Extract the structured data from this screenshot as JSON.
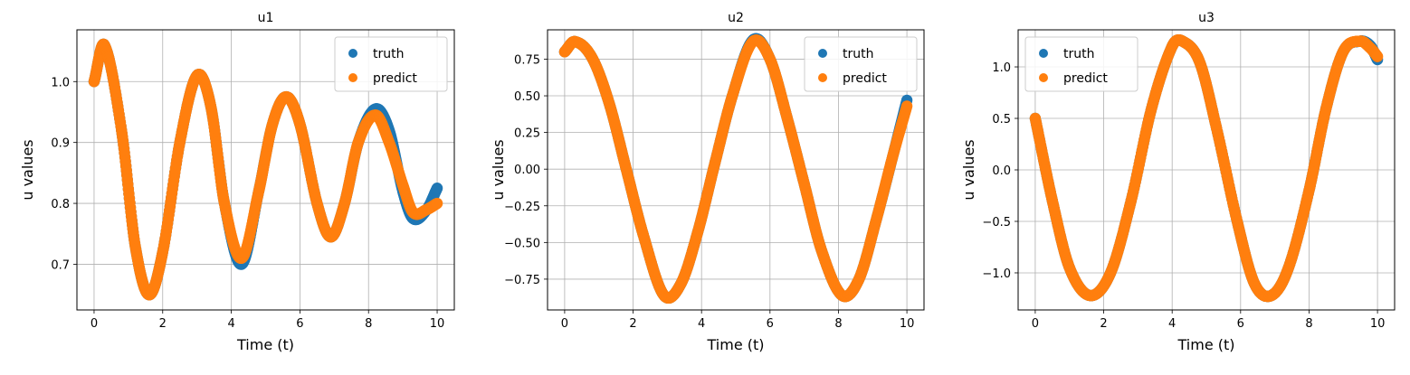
{
  "chart_data": [
    {
      "type": "scatter",
      "title": "u1",
      "xlabel": "Time (t)",
      "ylabel": "u values",
      "xlim": [
        -0.5,
        10.5
      ],
      "ylim": [
        0.625,
        1.085
      ],
      "xticks": [
        0,
        2,
        4,
        6,
        8,
        10
      ],
      "yticks": [
        0.7,
        0.8,
        0.9,
        1.0
      ],
      "ytick_labels": [
        "0.7",
        "0.8",
        "0.9",
        "1.0"
      ],
      "grid": true,
      "legend": "upper right",
      "series": [
        {
          "name": "truth",
          "color": "#1f77b4",
          "x": [
            0,
            0.3,
            0.8,
            1.2,
            1.6,
            2.0,
            2.5,
            3.0,
            3.4,
            3.8,
            4.3,
            4.8,
            5.2,
            5.6,
            6.0,
            6.5,
            6.9,
            7.3,
            7.7,
            8.2,
            8.6,
            9.0,
            9.3,
            9.7,
            10.0
          ],
          "y": [
            1.0,
            1.06,
            0.92,
            0.73,
            0.65,
            0.72,
            0.9,
            1.01,
            0.96,
            0.8,
            0.7,
            0.82,
            0.93,
            0.975,
            0.93,
            0.8,
            0.745,
            0.8,
            0.9,
            0.955,
            0.92,
            0.82,
            0.775,
            0.79,
            0.825
          ]
        },
        {
          "name": "predict",
          "color": "#ff7f0e",
          "x": [
            0,
            0.3,
            0.8,
            1.2,
            1.6,
            2.0,
            2.5,
            3.0,
            3.4,
            3.8,
            4.3,
            4.8,
            5.2,
            5.6,
            6.0,
            6.5,
            6.9,
            7.3,
            7.7,
            8.2,
            8.6,
            9.0,
            9.3,
            9.7,
            10.0
          ],
          "y": [
            1.0,
            1.06,
            0.92,
            0.73,
            0.65,
            0.72,
            0.9,
            1.01,
            0.96,
            0.8,
            0.71,
            0.82,
            0.93,
            0.975,
            0.93,
            0.8,
            0.745,
            0.8,
            0.9,
            0.945,
            0.9,
            0.83,
            0.785,
            0.79,
            0.8
          ]
        }
      ]
    },
    {
      "type": "scatter",
      "title": "u2",
      "xlabel": "Time (t)",
      "ylabel": "u values",
      "xlim": [
        -0.5,
        10.5
      ],
      "ylim": [
        -0.96,
        0.95
      ],
      "xticks": [
        0,
        2,
        4,
        6,
        8,
        10
      ],
      "yticks": [
        -0.75,
        -0.5,
        -0.25,
        0.0,
        0.25,
        0.5,
        0.75
      ],
      "ytick_labels": [
        "−0.75",
        "−0.50",
        "−0.25",
        "0.00",
        "0.25",
        "0.50",
        "0.75"
      ],
      "grid": true,
      "legend": "upper right",
      "series": [
        {
          "name": "truth",
          "color": "#1f77b4",
          "x": [
            0,
            0.3,
            0.8,
            1.3,
            1.8,
            2.3,
            2.9,
            3.4,
            3.9,
            4.4,
            4.9,
            5.5,
            6.0,
            6.5,
            7.0,
            7.5,
            8.1,
            8.6,
            9.1,
            9.6,
            10.0
          ],
          "y": [
            0.8,
            0.87,
            0.76,
            0.45,
            0.0,
            -0.45,
            -0.86,
            -0.78,
            -0.42,
            0.05,
            0.5,
            0.88,
            0.75,
            0.35,
            -0.1,
            -0.55,
            -0.86,
            -0.75,
            -0.35,
            0.1,
            0.47
          ]
        },
        {
          "name": "predict",
          "color": "#ff7f0e",
          "x": [
            0,
            0.3,
            0.8,
            1.3,
            1.8,
            2.3,
            2.9,
            3.4,
            3.9,
            4.4,
            4.9,
            5.5,
            6.0,
            6.5,
            7.0,
            7.5,
            8.1,
            8.6,
            9.1,
            9.6,
            10.0
          ],
          "y": [
            0.8,
            0.87,
            0.76,
            0.45,
            0.0,
            -0.45,
            -0.86,
            -0.78,
            -0.42,
            0.05,
            0.5,
            0.87,
            0.75,
            0.35,
            -0.1,
            -0.55,
            -0.86,
            -0.75,
            -0.35,
            0.1,
            0.43
          ]
        }
      ]
    },
    {
      "type": "scatter",
      "title": "u3",
      "xlabel": "Time (t)",
      "ylabel": "u values",
      "xlim": [
        -0.5,
        10.5
      ],
      "ylim": [
        -1.36,
        1.36
      ],
      "xticks": [
        0,
        2,
        4,
        6,
        8,
        10
      ],
      "yticks": [
        -1.0,
        -0.5,
        0.0,
        0.5,
        1.0
      ],
      "ytick_labels": [
        "−1.0",
        "−0.5",
        "0.0",
        "0.5",
        "1.0"
      ],
      "grid": true,
      "legend": "upper left",
      "series": [
        {
          "name": "truth",
          "color": "#1f77b4",
          "x": [
            0,
            0.5,
            1.0,
            1.6,
            2.2,
            2.8,
            3.4,
            4.0,
            4.3,
            4.8,
            5.3,
            5.9,
            6.4,
            6.9,
            7.4,
            8.0,
            8.5,
            9.0,
            9.5,
            9.8,
            10.0
          ],
          "y": [
            0.5,
            -0.3,
            -0.95,
            -1.22,
            -1.0,
            -0.3,
            0.6,
            1.2,
            1.25,
            1.05,
            0.4,
            -0.5,
            -1.1,
            -1.22,
            -0.95,
            -0.2,
            0.6,
            1.15,
            1.25,
            1.2,
            1.07
          ]
        },
        {
          "name": "predict",
          "color": "#ff7f0e",
          "x": [
            0,
            0.5,
            1.0,
            1.6,
            2.2,
            2.8,
            3.4,
            4.0,
            4.3,
            4.8,
            5.3,
            5.9,
            6.4,
            6.9,
            7.4,
            8.0,
            8.5,
            9.0,
            9.5,
            9.8,
            10.0
          ],
          "y": [
            0.5,
            -0.3,
            -0.95,
            -1.22,
            -1.0,
            -0.3,
            0.6,
            1.2,
            1.25,
            1.05,
            0.4,
            -0.5,
            -1.1,
            -1.22,
            -0.95,
            -0.2,
            0.6,
            1.15,
            1.25,
            1.18,
            1.1
          ]
        }
      ]
    }
  ]
}
